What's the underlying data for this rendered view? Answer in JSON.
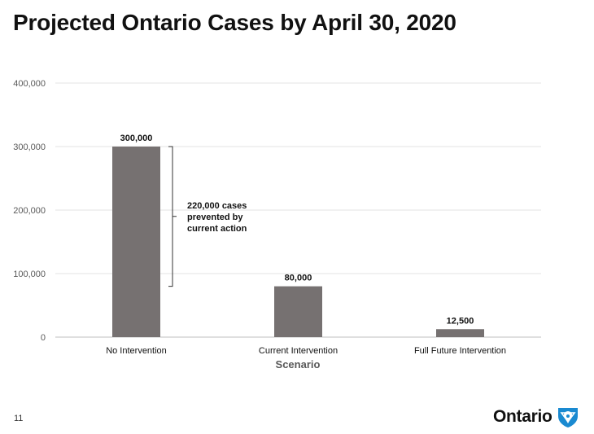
{
  "slide": {
    "page_number": "11"
  },
  "brand": {
    "name": "Ontario",
    "mark_icon": "trillium-shield-icon",
    "mark_color": "#1a8ad1"
  },
  "chart_data": {
    "type": "bar",
    "title": "Projected Ontario Cases by April 30, 2020",
    "xlabel": "Scenario",
    "ylabel": "",
    "categories": [
      "No Intervention",
      "Current Intervention",
      "Full Future Intervention"
    ],
    "values": [
      300000,
      80000,
      12500
    ],
    "data_labels": [
      "300,000",
      "80,000",
      "12,500"
    ],
    "ylim": [
      0,
      400000
    ],
    "yticks": [
      0,
      100000,
      200000,
      300000,
      400000
    ],
    "ytick_labels": [
      "0",
      "100,000",
      "200,000",
      "300,000",
      "400,000"
    ],
    "grid": true,
    "legend": "none",
    "bar_color": "#767171",
    "annotation": {
      "lines": [
        "220,000 cases",
        "prevented by",
        "current action"
      ],
      "from_value": 300000,
      "to_value": 80000
    }
  }
}
